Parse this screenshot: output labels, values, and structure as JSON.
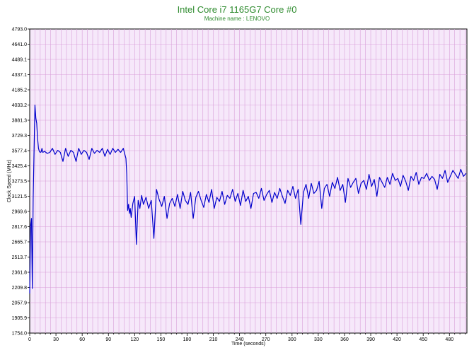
{
  "chart_data": {
    "type": "line",
    "title": "Intel Core i7 1165G7 Core #0",
    "subtitle": "Machine name : LENOVO",
    "xlabel": "Time (seconds)",
    "ylabel": "Clock Speed (MHz)",
    "xlim": [
      0,
      500
    ],
    "ylim": [
      1754.0,
      4793.0
    ],
    "x_ticks": [
      "0",
      "30",
      "60",
      "90",
      "120",
      "150",
      "180",
      "210",
      "240",
      "270",
      "300",
      "330",
      "360",
      "390",
      "420",
      "450",
      "480"
    ],
    "y_ticks": [
      "1754.0",
      "1905.9",
      "2057.9",
      "2209.8",
      "2361.8",
      "2513.7",
      "2665.7",
      "2817.6",
      "2969.6",
      "3121.5",
      "3273.5",
      "3425.4",
      "3577.4",
      "3729.3",
      "3881.3",
      "4033.2",
      "4185.2",
      "4337.1",
      "4489.1",
      "4641.0",
      "4793.0"
    ],
    "grid": true,
    "background": "#f6e8fa",
    "grid_color": "#d9a0d9",
    "line_color": "#0000cc",
    "title_color": "#2e8b2e",
    "series": [
      {
        "x": [
          0,
          1,
          2,
          3,
          4,
          5,
          6,
          7,
          8,
          9,
          10,
          11,
          12,
          13,
          14,
          15,
          17,
          20,
          23,
          26,
          29,
          32,
          35,
          38,
          41,
          44,
          47,
          50,
          53,
          56,
          59,
          62,
          65,
          68,
          71,
          74,
          77,
          80,
          83,
          86,
          89,
          92,
          95,
          98,
          101,
          104,
          107,
          110,
          111,
          112,
          113,
          114,
          115,
          116,
          118,
          120,
          122,
          124,
          126,
          128,
          130,
          133,
          136,
          139,
          142,
          145,
          148,
          151,
          154,
          157,
          160,
          163,
          166,
          169,
          172,
          175,
          178,
          181,
          184,
          187,
          190,
          193,
          196,
          199,
          202,
          205,
          208,
          211,
          214,
          217,
          220,
          223,
          226,
          229,
          232,
          235,
          238,
          241,
          244,
          247,
          250,
          253,
          256,
          259,
          262,
          265,
          268,
          271,
          274,
          277,
          280,
          283,
          286,
          289,
          292,
          295,
          298,
          301,
          304,
          307,
          310,
          313,
          316,
          319,
          322,
          325,
          328,
          331,
          334,
          337,
          340,
          343,
          346,
          349,
          352,
          355,
          358,
          361,
          364,
          367,
          370,
          373,
          376,
          379,
          382,
          385,
          388,
          391,
          394,
          397,
          400,
          403,
          406,
          409,
          412,
          415,
          418,
          421,
          424,
          427,
          430,
          433,
          436,
          439,
          442,
          445,
          448,
          451,
          454,
          457,
          460,
          463,
          466,
          469,
          472,
          475,
          478,
          481,
          484,
          487,
          490,
          493,
          496,
          499
        ],
        "values": [
          2150,
          2820,
          2900,
          2200,
          3100,
          3600,
          4033,
          3900,
          3850,
          3700,
          3600,
          3570,
          3560,
          3565,
          3600,
          3560,
          3570,
          3550,
          3560,
          3600,
          3540,
          3580,
          3560,
          3470,
          3600,
          3520,
          3580,
          3560,
          3470,
          3600,
          3540,
          3580,
          3560,
          3490,
          3600,
          3550,
          3580,
          3560,
          3600,
          3520,
          3590,
          3540,
          3600,
          3560,
          3590,
          3560,
          3600,
          3500,
          3340,
          2980,
          3040,
          2950,
          3000,
          2910,
          3050,
          3120,
          2640,
          3080,
          3000,
          3130,
          3040,
          3110,
          3000,
          3080,
          2700,
          3190,
          3090,
          3020,
          3120,
          2900,
          3050,
          3100,
          3020,
          3140,
          3000,
          3170,
          3080,
          3040,
          3160,
          2900,
          3110,
          3170,
          3080,
          3010,
          3140,
          3060,
          3190,
          3000,
          3110,
          3070,
          3170,
          3040,
          3130,
          3100,
          3190,
          3070,
          3150,
          3030,
          3180,
          3070,
          3120,
          3000,
          3150,
          3160,
          3100,
          3200,
          3080,
          3140,
          3180,
          3060,
          3160,
          3100,
          3200,
          3120,
          3050,
          3180,
          3130,
          3220,
          3100,
          3190,
          2840,
          3160,
          3240,
          3100,
          3250,
          3150,
          3180,
          3270,
          3000,
          3200,
          3240,
          3120,
          3260,
          3200,
          3310,
          3180,
          3240,
          3060,
          3300,
          3210,
          3260,
          3300,
          3150,
          3250,
          3280,
          3190,
          3340,
          3220,
          3290,
          3120,
          3310,
          3260,
          3210,
          3310,
          3240,
          3350,
          3280,
          3300,
          3220,
          3330,
          3270,
          3180,
          3320,
          3280,
          3360,
          3240,
          3310,
          3300,
          3350,
          3280,
          3320,
          3290,
          3190,
          3340,
          3300,
          3380,
          3260,
          3320,
          3380,
          3340,
          3300,
          3390,
          3320,
          3350
        ]
      }
    ]
  }
}
